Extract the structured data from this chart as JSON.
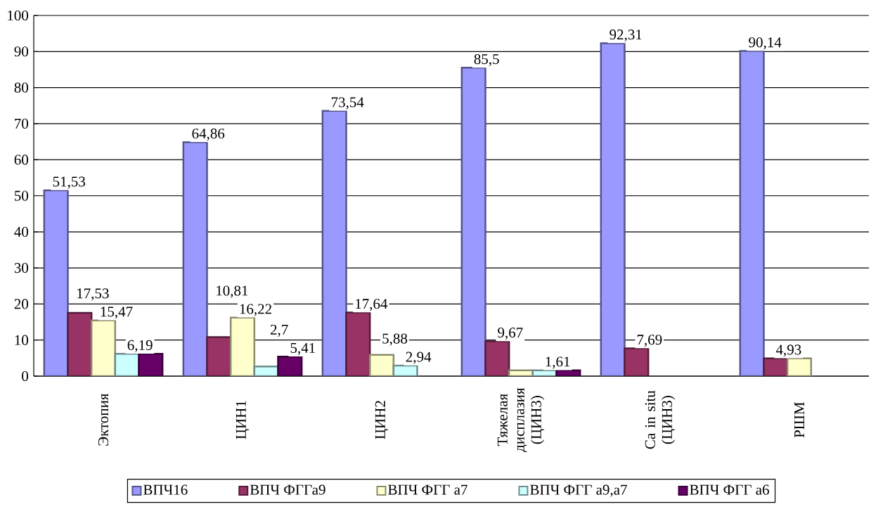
{
  "chart_data": {
    "type": "bar",
    "categories": [
      "Эктопия",
      "ЦИН1",
      "ЦИН2",
      "Тяжелая дисплазия (ЦИН3)",
      "Ca in situ (ЦИН3)",
      "РШМ"
    ],
    "series": [
      {
        "name": "ВПЧ16",
        "color": "#9999ff",
        "values": [
          51.53,
          64.86,
          73.54,
          85.5,
          92.31,
          90.14
        ],
        "value_labels": [
          "51,53",
          "64,86",
          "73,54",
          "85,5",
          "92,31",
          "90,14"
        ]
      },
      {
        "name": "ВПЧ ФГГа9",
        "color": "#993366",
        "values": [
          17.53,
          10.81,
          17.64,
          9.67,
          7.69,
          4.93
        ],
        "value_labels": [
          "17,53",
          "10,81",
          "17,64",
          "9,67",
          "7,69",
          "4,93"
        ]
      },
      {
        "name": "ВПЧ ФГГ а7",
        "color": "#ffffcc",
        "values": [
          15.47,
          16.22,
          5.88,
          1.6,
          null,
          4.9
        ],
        "value_labels": [
          "15,47",
          "16,22",
          "5,88",
          null,
          null,
          null
        ]
      },
      {
        "name": "ВПЧ ФГГ а9,а7",
        "color": "#ccffff",
        "values": [
          6.19,
          2.7,
          2.94,
          1.61,
          null,
          null
        ],
        "value_labels": [
          "6,19",
          "2,7",
          "2,94",
          "1,61",
          null,
          null
        ]
      },
      {
        "name": "ВПЧ ФГГ а6",
        "color": "#660066",
        "values": [
          6.2,
          5.41,
          null,
          1.6,
          null,
          null
        ],
        "value_labels": [
          null,
          "5,41",
          null,
          null,
          null,
          null
        ]
      }
    ],
    "ylim": [
      0,
      100
    ],
    "yticks": [
      0,
      10,
      20,
      30,
      40,
      50,
      60,
      70,
      80,
      90,
      100
    ],
    "grid": "y",
    "legend": "bottom"
  }
}
